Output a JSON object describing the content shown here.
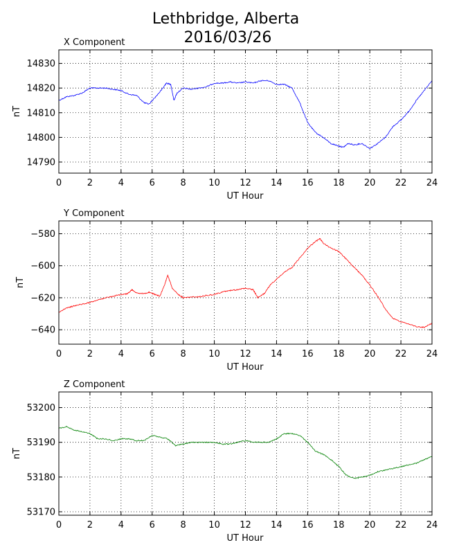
{
  "figure": {
    "title_line1": "Lethbridge, Alberta",
    "title_line2": "2016/03/26"
  },
  "chart_data": [
    {
      "type": "line",
      "title": "X Component",
      "xlabel": "UT Hour",
      "ylabel": "nT",
      "xlim": [
        0,
        24
      ],
      "ylim": [
        14785.5,
        14835.5
      ],
      "xticks": [
        0,
        2,
        4,
        6,
        8,
        10,
        12,
        14,
        16,
        18,
        20,
        22,
        24
      ],
      "yticks": [
        14790,
        14800,
        14810,
        14820,
        14830
      ],
      "ytick_labels": [
        "14790",
        "14800",
        "14810",
        "14820",
        "14830"
      ],
      "grid": true,
      "series": [
        {
          "color": "#0000ff",
          "x": [
            0,
            0.5,
            1,
            1.5,
            2,
            2.5,
            3,
            3.5,
            4,
            4.5,
            5,
            5.5,
            5.8,
            6.3,
            6.7,
            6.9,
            7.2,
            7.4,
            7.6,
            8,
            8.5,
            9,
            9.5,
            10,
            10.5,
            11,
            11.5,
            12,
            12.5,
            13,
            13.5,
            14,
            14.5,
            15,
            15.5,
            16,
            16.5,
            17,
            17.5,
            18,
            18.3,
            18.6,
            19,
            19.5,
            20,
            20.5,
            21,
            21.5,
            22,
            22.5,
            23,
            23.5,
            24
          ],
          "values": [
            14815,
            14816.5,
            14817,
            14818,
            14820,
            14820,
            14820,
            14819.5,
            14819,
            14817.5,
            14817,
            14814,
            14813.5,
            14817,
            14820,
            14822,
            14821.5,
            14815,
            14818,
            14820,
            14819.5,
            14820,
            14820.5,
            14822,
            14822,
            14822.5,
            14822,
            14822.5,
            14822,
            14823,
            14823,
            14821.5,
            14821.5,
            14820,
            14814,
            14806,
            14802,
            14800,
            14797.5,
            14796.5,
            14796,
            14797.5,
            14797,
            14797.5,
            14795.5,
            14797.5,
            14800,
            14804.5,
            14807,
            14810.5,
            14815,
            14819,
            14823
          ]
        }
      ]
    },
    {
      "type": "line",
      "title": "Y Component",
      "xlabel": "UT Hour",
      "ylabel": "nT",
      "xlim": [
        0,
        24
      ],
      "ylim": [
        -649,
        -572
      ],
      "xticks": [
        0,
        2,
        4,
        6,
        8,
        10,
        12,
        14,
        16,
        18,
        20,
        22,
        24
      ],
      "yticks": [
        -640,
        -620,
        -600,
        -580
      ],
      "ytick_labels": [
        "−640",
        "−620",
        "−600",
        "−580"
      ],
      "grid": true,
      "series": [
        {
          "color": "#ff0000",
          "x": [
            0,
            0.5,
            1,
            1.5,
            2,
            2.5,
            3,
            3.5,
            4,
            4.4,
            4.7,
            5,
            5.5,
            5.8,
            6.2,
            6.5,
            6.8,
            7,
            7.3,
            7.7,
            8,
            8.5,
            9,
            9.5,
            10,
            10.5,
            11,
            11.5,
            12,
            12.5,
            12.8,
            13.2,
            13.6,
            14,
            14.5,
            15,
            15.5,
            16,
            16.5,
            16.8,
            17,
            17.5,
            18,
            18.5,
            19,
            19.5,
            20,
            20.5,
            21,
            21.5,
            22,
            22.5,
            23,
            23.5,
            24
          ],
          "values": [
            -629,
            -626.5,
            -625,
            -624,
            -623,
            -621.5,
            -620,
            -619,
            -618,
            -617.5,
            -615,
            -617,
            -617.5,
            -616.5,
            -618,
            -619,
            -612,
            -606,
            -614,
            -618,
            -620,
            -619.5,
            -619.5,
            -618.5,
            -618,
            -616.5,
            -615.5,
            -615,
            -614,
            -615,
            -620,
            -617.5,
            -612,
            -608.5,
            -604,
            -601,
            -595,
            -589,
            -585,
            -583,
            -586,
            -589,
            -591,
            -596,
            -601,
            -606,
            -612,
            -619,
            -627,
            -633,
            -635,
            -636.5,
            -638,
            -638.5,
            -636
          ]
        }
      ]
    },
    {
      "type": "line",
      "title": "Z Component",
      "xlabel": "UT Hour",
      "ylabel": "nT",
      "xlim": [
        0,
        24
      ],
      "ylim": [
        53169,
        53204.5
      ],
      "xticks": [
        0,
        2,
        4,
        6,
        8,
        10,
        12,
        14,
        16,
        18,
        20,
        22,
        24
      ],
      "yticks": [
        53170,
        53180,
        53190,
        53200
      ],
      "ytick_labels": [
        "53170",
        "53180",
        "53190",
        "53200"
      ],
      "grid": true,
      "series": [
        {
          "color": "#008000",
          "x": [
            0,
            0.5,
            1,
            1.5,
            2,
            2.5,
            3,
            3.5,
            4,
            4.5,
            5,
            5.5,
            6,
            6.5,
            7,
            7.5,
            8,
            8.5,
            9,
            9.5,
            10,
            10.5,
            11,
            11.5,
            12,
            12.5,
            13,
            13.5,
            14,
            14.5,
            15,
            15.5,
            16,
            16.5,
            17,
            17.5,
            18,
            18.5,
            19,
            19.5,
            20,
            20.5,
            21,
            21.5,
            22,
            22.5,
            23,
            23.5,
            24
          ],
          "values": [
            53194,
            53194.5,
            53193.5,
            53193,
            53192.5,
            53191,
            53191,
            53190.5,
            53191,
            53191,
            53190.5,
            53190.5,
            53192,
            53191.5,
            53191,
            53189,
            53189.5,
            53190,
            53190,
            53190,
            53190,
            53189.5,
            53189.5,
            53190,
            53190.5,
            53190,
            53190,
            53190,
            53191,
            53192.5,
            53192.5,
            53192,
            53190,
            53187.5,
            53186.5,
            53185,
            53183,
            53180.5,
            53179.5,
            53180,
            53180.5,
            53181.5,
            53182,
            53182.5,
            53183,
            53183.5,
            53184,
            53185,
            53186
          ]
        }
      ]
    }
  ]
}
